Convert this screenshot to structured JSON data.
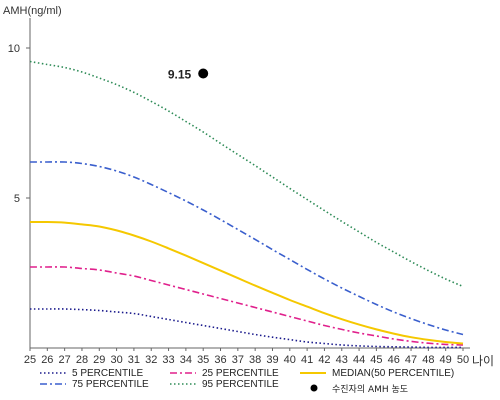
{
  "chart_data": {
    "type": "line",
    "title": "",
    "ylabel": "AMH(ng/ml)",
    "xlabel": "나이",
    "x": [
      25,
      26,
      27,
      28,
      29,
      30,
      31,
      32,
      33,
      34,
      35,
      36,
      37,
      38,
      39,
      40,
      41,
      42,
      43,
      44,
      45,
      46,
      47,
      48,
      49,
      50
    ],
    "xlim": [
      25,
      50
    ],
    "ylim": [
      0,
      11
    ],
    "yticks": [
      5,
      10
    ],
    "grid": false,
    "legend_position": "bottom",
    "series": [
      {
        "name": "5 PERCENTILE",
        "color": "#1a1a8c",
        "dash": "dotted",
        "values": [
          1.3,
          1.3,
          1.3,
          1.28,
          1.25,
          1.2,
          1.15,
          1.05,
          0.95,
          0.85,
          0.75,
          0.65,
          0.55,
          0.45,
          0.36,
          0.28,
          0.2,
          0.15,
          0.1,
          0.07,
          0.05,
          0.04,
          0.03,
          0.02,
          0.02,
          0.02
        ]
      },
      {
        "name": "25 PERCENTILE",
        "color": "#e0208c",
        "dash": "dash-dot",
        "values": [
          2.7,
          2.7,
          2.7,
          2.65,
          2.6,
          2.5,
          2.4,
          2.25,
          2.1,
          1.95,
          1.8,
          1.65,
          1.5,
          1.35,
          1.2,
          1.05,
          0.9,
          0.75,
          0.62,
          0.5,
          0.4,
          0.3,
          0.22,
          0.16,
          0.12,
          0.1
        ]
      },
      {
        "name": "MEDIAN(50 PERCENTILE)",
        "color": "#f5c800",
        "dash": "solid",
        "values": [
          4.2,
          4.2,
          4.18,
          4.12,
          4.05,
          3.92,
          3.75,
          3.55,
          3.32,
          3.08,
          2.83,
          2.58,
          2.33,
          2.08,
          1.84,
          1.6,
          1.38,
          1.16,
          0.96,
          0.78,
          0.62,
          0.48,
          0.36,
          0.27,
          0.2,
          0.15
        ]
      },
      {
        "name": "75 PERCENTILE",
        "color": "#3a5fcd",
        "dash": "dash-dot",
        "values": [
          6.2,
          6.2,
          6.2,
          6.15,
          6.05,
          5.9,
          5.7,
          5.45,
          5.18,
          4.9,
          4.6,
          4.28,
          3.95,
          3.62,
          3.28,
          2.95,
          2.62,
          2.3,
          2.0,
          1.72,
          1.45,
          1.2,
          0.98,
          0.78,
          0.6,
          0.45
        ]
      },
      {
        "name": "95 PERCENTILE",
        "color": "#2e8b57",
        "dash": "dotted",
        "values": [
          9.55,
          9.45,
          9.35,
          9.2,
          9.0,
          8.78,
          8.52,
          8.22,
          7.9,
          7.55,
          7.2,
          6.82,
          6.45,
          6.08,
          5.7,
          5.32,
          4.95,
          4.58,
          4.22,
          3.87,
          3.52,
          3.2,
          2.88,
          2.58,
          2.3,
          2.05
        ]
      }
    ],
    "marker": {
      "label": "수진자의 AMH 농도",
      "x": 35,
      "y": 9.15,
      "text": "9.15",
      "color": "#000000"
    }
  }
}
